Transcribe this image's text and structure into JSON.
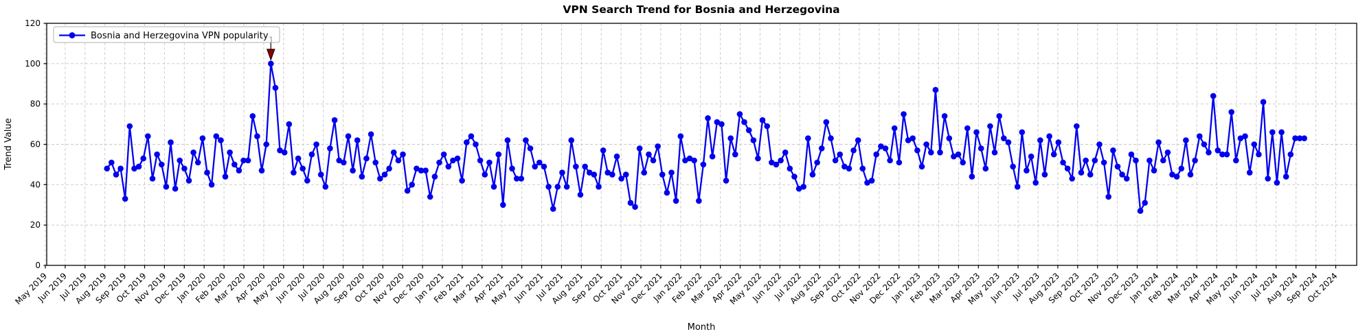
{
  "title": "VPN Search Trend for Bosnia and Herzegovina",
  "xlabel": "Month",
  "ylabel": "Trend Value",
  "legend": {
    "label": "Bosnia and Herzegovina VPN popularity"
  },
  "annotation": {
    "glyph": "1",
    "marker": "triangle-down-icon",
    "marker_color": "#8B0000"
  },
  "colors": {
    "line": "#0000EE",
    "marker": "#0000EE",
    "grid": "#C8C8C8",
    "spine": "#000000",
    "annotation_fill": "#8B0000",
    "annotation_edge": "#1a0000",
    "legend_border": "#B0B0B0",
    "background": "#FFFFFF"
  },
  "chart_data": {
    "type": "line",
    "title": "VPN Search Trend for Bosnia and Herzegovina",
    "xlabel": "Month",
    "ylabel": "Trend Value",
    "ylim": [
      0,
      120
    ],
    "yticks": [
      0,
      20,
      40,
      60,
      80,
      100,
      120
    ],
    "grid": true,
    "legend_position": "upper left",
    "x_unit": "weeks",
    "x_start_month": "Aug 2019",
    "x_end_month": "Aug 2024",
    "xtick_labels": [
      "May 2019",
      "Jun 2019",
      "Jul 2019",
      "Aug 2019",
      "Sep 2019",
      "Oct 2019",
      "Nov 2019",
      "Dec 2019",
      "Jan 2020",
      "Feb 2020",
      "Mar 2020",
      "Apr 2020",
      "May 2020",
      "Jun 2020",
      "Jul 2020",
      "Aug 2020",
      "Sep 2020",
      "Oct 2020",
      "Nov 2020",
      "Dec 2020",
      "Jan 2021",
      "Feb 2021",
      "Mar 2021",
      "Apr 2021",
      "May 2021",
      "Jun 2021",
      "Jul 2021",
      "Aug 2021",
      "Sep 2021",
      "Oct 2021",
      "Nov 2021",
      "Dec 2021",
      "Jan 2022",
      "Feb 2022",
      "Mar 2022",
      "Apr 2022",
      "May 2022",
      "Jun 2022",
      "Jul 2022",
      "Aug 2022",
      "Sep 2022",
      "Oct 2022",
      "Nov 2022",
      "Dec 2022",
      "Jan 2023",
      "Feb 2023",
      "Mar 2023",
      "Apr 2023",
      "May 2023",
      "Jun 2023",
      "Jul 2023",
      "Aug 2023",
      "Sep 2023",
      "Oct 2023",
      "Nov 2023",
      "Dec 2023",
      "Jan 2024",
      "Feb 2024",
      "Mar 2024",
      "Apr 2024",
      "May 2024",
      "Jun 2024",
      "Jul 2024",
      "Aug 2024",
      "Sep 2024",
      "Oct 2024"
    ],
    "series": [
      {
        "name": "Bosnia and Herzegovina VPN popularity",
        "values": [
          48,
          51,
          45,
          48,
          33,
          69,
          48,
          49,
          53,
          64,
          43,
          55,
          50,
          39,
          61,
          38,
          52,
          48,
          42,
          56,
          51,
          63,
          46,
          40,
          64,
          62,
          44,
          56,
          50,
          47,
          52,
          52,
          74,
          64,
          47,
          60,
          100,
          88,
          57,
          56,
          70,
          46,
          53,
          48,
          42,
          55,
          60,
          45,
          39,
          58,
          72,
          52,
          51,
          64,
          47,
          62,
          44,
          53,
          65,
          51,
          43,
          45,
          48,
          56,
          52,
          55,
          37,
          40,
          48,
          47,
          47,
          34,
          44,
          51,
          55,
          49,
          52,
          53,
          42,
          61,
          64,
          60,
          52,
          45,
          51,
          39,
          55,
          30,
          62,
          48,
          43,
          43,
          62,
          58,
          49,
          51,
          49,
          39,
          28,
          39,
          46,
          39,
          62,
          49,
          35,
          49,
          46,
          45,
          39,
          57,
          46,
          45,
          54,
          43,
          45,
          31,
          29,
          58,
          46,
          55,
          52,
          59,
          45,
          36,
          46,
          32,
          64,
          52,
          53,
          52,
          32,
          50,
          73,
          54,
          71,
          70,
          42,
          63,
          55,
          75,
          71,
          67,
          62,
          53,
          72,
          69,
          51,
          50,
          52,
          56,
          48,
          44,
          38,
          39,
          63,
          45,
          51,
          58,
          71,
          63,
          52,
          55,
          49,
          48,
          57,
          62,
          48,
          41,
          42,
          55,
          59,
          58,
          52,
          68,
          51,
          75,
          62,
          63,
          57,
          49,
          60,
          56,
          87,
          56,
          74,
          63,
          54,
          55,
          51,
          68,
          44,
          66,
          58,
          48,
          69,
          56,
          74,
          63,
          61,
          49,
          39,
          66,
          47,
          54,
          41,
          62,
          45,
          64,
          55,
          61,
          51,
          48,
          43,
          69,
          46,
          52,
          45,
          52,
          60,
          51,
          34,
          57,
          49,
          45,
          43,
          55,
          52,
          27,
          31,
          52,
          47,
          61,
          52,
          56,
          45,
          44,
          48,
          62,
          45,
          52,
          64,
          60,
          56,
          84,
          57,
          55,
          55,
          76,
          52,
          63,
          64,
          46,
          60,
          55,
          81,
          43,
          66,
          41,
          66,
          44,
          55,
          63,
          63,
          63
        ]
      }
    ],
    "annotation": {
      "type": "arrow-triangle-down",
      "at_index": 36,
      "at_value": 100,
      "visible_text": "1"
    }
  }
}
